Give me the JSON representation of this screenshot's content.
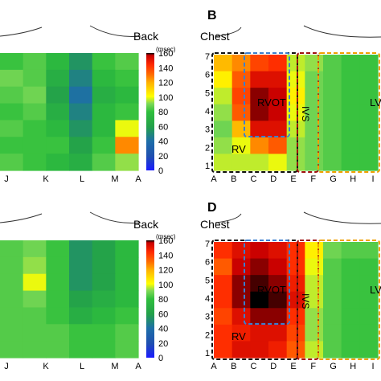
{
  "panels": {
    "top_left": {
      "heading": "Back"
    },
    "top_right": {
      "letter": "B",
      "heading": "Chest"
    },
    "bottom_left": {
      "heading": "Back"
    },
    "bottom_right": {
      "letter": "D",
      "heading": "Chest"
    }
  },
  "chart_data": [
    {
      "type": "heatmap",
      "panel": "top_left",
      "x_tick_labels": [
        "J",
        "K",
        "L",
        "M",
        "A"
      ],
      "colorbar": {
        "unit": "(msec)",
        "ticks": [
          0,
          20,
          40,
          60,
          80,
          100,
          120,
          140,
          160
        ],
        "range": [
          0,
          160
        ],
        "colors": [
          "#1a1aff",
          "#1f4fb0",
          "#1e6ea8",
          "#23a04a",
          "#2fbf3c",
          "#7ed957",
          "#ffff00",
          "#ffb000",
          "#ff6a00",
          "#ff2a00",
          "#c80000",
          "#000000"
        ]
      },
      "values_msec": [
        [
          60,
          65,
          55,
          40,
          60,
          65
        ],
        [
          70,
          65,
          50,
          35,
          55,
          60
        ],
        [
          65,
          70,
          45,
          30,
          50,
          55
        ],
        [
          60,
          65,
          50,
          35,
          55,
          60
        ],
        [
          65,
          60,
          55,
          40,
          55,
          85
        ],
        [
          60,
          60,
          60,
          45,
          60,
          110
        ],
        [
          65,
          60,
          55,
          50,
          65,
          75
        ]
      ]
    },
    {
      "type": "heatmap",
      "panel": "top_right",
      "x_tick_labels": [
        "A",
        "B",
        "C",
        "D",
        "E",
        "F",
        "G",
        "H",
        "I"
      ],
      "y_tick_labels": [
        "1",
        "2",
        "3",
        "4",
        "5",
        "6",
        "7"
      ],
      "region_labels": [
        "RVOT",
        "IVS",
        "RV",
        "LV"
      ],
      "values_msec": [
        [
          100,
          110,
          125,
          130,
          80,
          75,
          65,
          60,
          60
        ],
        [
          90,
          120,
          140,
          140,
          85,
          70,
          65,
          60,
          60
        ],
        [
          80,
          125,
          150,
          145,
          90,
          70,
          65,
          60,
          60
        ],
        [
          75,
          120,
          150,
          145,
          85,
          70,
          65,
          60,
          60
        ],
        [
          70,
          100,
          140,
          140,
          80,
          70,
          65,
          60,
          60
        ],
        [
          75,
          85,
          110,
          120,
          75,
          70,
          65,
          60,
          60
        ],
        [
          80,
          80,
          80,
          85,
          75,
          70,
          65,
          60,
          60
        ]
      ]
    },
    {
      "type": "heatmap",
      "panel": "bottom_left",
      "x_tick_labels": [
        "J",
        "K",
        "L",
        "M",
        "A"
      ],
      "colorbar": {
        "unit": "(msec)",
        "ticks": [
          0,
          20,
          40,
          60,
          80,
          100,
          120,
          140,
          160
        ],
        "range": [
          0,
          160
        ]
      },
      "values_msec": [
        [
          65,
          70,
          60,
          40,
          45,
          55
        ],
        [
          65,
          75,
          60,
          40,
          45,
          55
        ],
        [
          65,
          85,
          60,
          40,
          45,
          55
        ],
        [
          65,
          70,
          60,
          45,
          50,
          55
        ],
        [
          65,
          65,
          60,
          50,
          55,
          60
        ],
        [
          65,
          65,
          65,
          60,
          60,
          65
        ],
        [
          65,
          65,
          65,
          60,
          60,
          65
        ]
      ]
    },
    {
      "type": "heatmap",
      "panel": "bottom_right",
      "x_tick_labels": [
        "A",
        "B",
        "C",
        "D",
        "E",
        "F",
        "G",
        "H",
        "I"
      ],
      "y_tick_labels": [
        "1",
        "2",
        "3",
        "4",
        "5",
        "6",
        "7"
      ],
      "region_labels": [
        "RVOT",
        "IVS",
        "RV",
        "LV"
      ],
      "values_msec": [
        [
          130,
          140,
          145,
          140,
          130,
          90,
          70,
          65,
          65
        ],
        [
          120,
          145,
          150,
          145,
          130,
          85,
          65,
          60,
          60
        ],
        [
          130,
          150,
          155,
          150,
          135,
          80,
          65,
          60,
          60
        ],
        [
          130,
          150,
          160,
          155,
          140,
          80,
          65,
          60,
          60
        ],
        [
          125,
          140,
          150,
          150,
          130,
          75,
          65,
          60,
          60
        ],
        [
          130,
          135,
          140,
          140,
          125,
          75,
          65,
          60,
          60
        ],
        [
          130,
          140,
          140,
          135,
          120,
          80,
          65,
          60,
          60
        ]
      ]
    }
  ]
}
